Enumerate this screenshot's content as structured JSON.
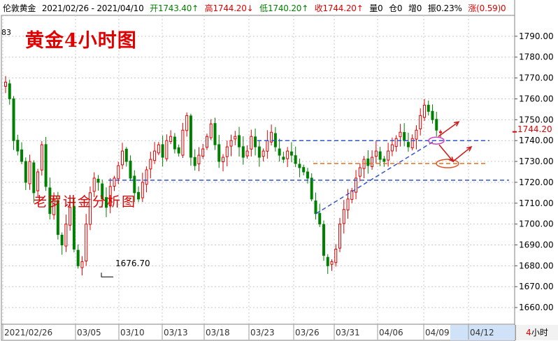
{
  "header": {
    "symbol": "伦敦黄金",
    "range": "2021/02/26 - 2021/04/10",
    "open": "开1743.40↑",
    "high": "高1744.20↓",
    "low": "低1740.20↑",
    "close": "收1744.20↑",
    "volume": "量0",
    "position": "仓0",
    "increase": "增0",
    "amplitude": "振0.23%",
    "change": "涨(0.59)0"
  },
  "watermark_title": "黄金4小时图",
  "watermark_subtitle": "老罗讲金分析图",
  "left_axis_tick": "83",
  "low_marker_label": "1676.70",
  "current_price_label": "1744.20",
  "period": {
    "number": "4",
    "unit": "小时"
  },
  "colors": {
    "up": "#e00000",
    "down": "#008000",
    "trend_line": "#3355cc",
    "support_line": "#e07020",
    "highlight_ellipse": "#d040c0"
  },
  "chart_data": {
    "type": "candlestick",
    "y_axis": {
      "ticks": [
        1660,
        1670,
        1680,
        1690,
        1700,
        1710,
        1720,
        1730,
        1740,
        1750,
        1760,
        1770,
        1780,
        1790
      ],
      "range": [
        1652,
        1800
      ],
      "tick_labels": [
        "1660.00",
        "1670.00",
        "1680.00",
        "1690.00",
        "1700.00",
        "1710.00",
        "1720.00",
        "1730.00",
        "1740.00",
        "1750.00",
        "1760.00",
        "1770.00",
        "1780.00",
        "1790.00"
      ]
    },
    "x_axis": {
      "labels": [
        "2021/02/26",
        "03/05",
        "03/10",
        "03/13",
        "03/18",
        "03/23",
        "03/26",
        "03/31",
        "04/06",
        "04/09",
        "04/12"
      ]
    },
    "close_path": [
      1768,
      1760,
      1740,
      1735,
      1730,
      1720,
      1730,
      1715,
      1725,
      1738,
      1718,
      1705,
      1712,
      1695,
      1690,
      1700,
      1708,
      1688,
      1680,
      1682,
      1700,
      1715,
      1722,
      1720,
      1712,
      1708,
      1718,
      1722,
      1728,
      1735,
      1730,
      1722,
      1715,
      1712,
      1720,
      1726,
      1731,
      1735,
      1738,
      1732,
      1740,
      1742,
      1736,
      1734,
      1745,
      1752,
      1732,
      1728,
      1733,
      1736,
      1742,
      1748,
      1738,
      1730,
      1732,
      1737,
      1740,
      1742,
      1737,
      1732,
      1735,
      1742,
      1737,
      1732,
      1735,
      1740,
      1744,
      1737,
      1733,
      1731,
      1735,
      1733,
      1729,
      1727,
      1725,
      1722,
      1712,
      1705,
      1700,
      1685,
      1680,
      1682,
      1688,
      1700,
      1707,
      1712,
      1716,
      1722,
      1727,
      1731,
      1728,
      1732,
      1735,
      1731,
      1730,
      1735,
      1738,
      1741,
      1744,
      1740,
      1737,
      1741,
      1745,
      1752,
      1757,
      1754,
      1750,
      1745,
      1744.2
    ],
    "last_close": 1744.2,
    "low_marker": 1676.7,
    "resistance_1740": 1740,
    "support_1729": 1729,
    "support_1721": 1721
  }
}
